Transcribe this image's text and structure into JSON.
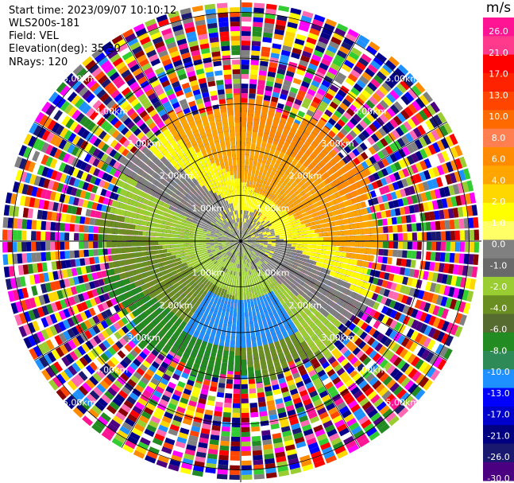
{
  "header": {
    "start_time": "Start time: 2023/09/07 10:10:12",
    "instrument": "WLS200s-181",
    "field": "Field: VEL",
    "elevation": "Elevation(deg): 35.30",
    "nrays": "NRays: 120"
  },
  "ring_labels": [
    "1.00km",
    "2.00km",
    "3.00km",
    "4.00km",
    "5.00km"
  ],
  "colorbar": {
    "unit": "m/s",
    "ticks": [
      "26.0",
      "21.0",
      "17.0",
      "13.0",
      "10.0",
      "8.0",
      "6.0",
      "4.0",
      "2.0",
      "1.0",
      "0.0",
      "-1.0",
      "-2.0",
      "-4.0",
      "-6.0",
      "-8.0",
      "-10.0",
      "-13.0",
      "-17.0",
      "-21.0",
      "-26.0",
      "-30.0"
    ],
    "colors": [
      "#ff1493",
      "#ff3a8c",
      "#ff0000",
      "#ff2200",
      "#ff4500",
      "#ff6a00",
      "#ff7f50",
      "#ff8c00",
      "#ffa500",
      "#ffd700",
      "#ffff00",
      "#ffff66",
      "#808080",
      "#696969",
      "#9acd32",
      "#6b8e23",
      "#556b2f",
      "#228b22",
      "#2e8b57",
      "#1e90ff",
      "#0000ff",
      "#0000cd",
      "#000080",
      "#191970",
      "#4b0082"
    ]
  },
  "colors": {
    "grid": "#000000",
    "background": "#ffffff"
  }
}
